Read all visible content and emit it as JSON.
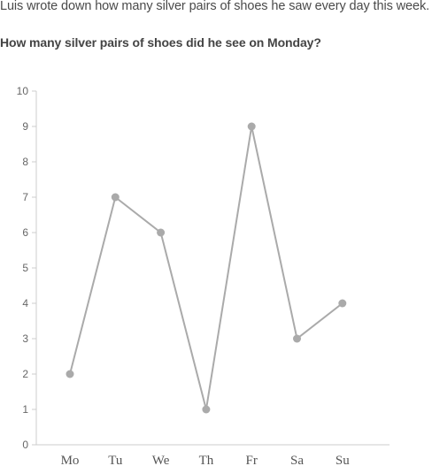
{
  "question": {
    "intro": "Luis wrote down how many silver pairs of shoes he saw every day this week.",
    "prompt": "How many silver pairs of shoes did he see on Monday?"
  },
  "chart_data": {
    "type": "line",
    "categories": [
      "Mo",
      "Tu",
      "We",
      "Th",
      "Fr",
      "Sa",
      "Su"
    ],
    "values": [
      2,
      7,
      6,
      1,
      9,
      3,
      4
    ],
    "ylim": [
      0,
      10
    ],
    "yticks": [
      0,
      1,
      2,
      3,
      4,
      5,
      6,
      7,
      8,
      9,
      10
    ],
    "grid": false,
    "line_color": "#aaaaaa",
    "axis_color": "#cccccc"
  }
}
